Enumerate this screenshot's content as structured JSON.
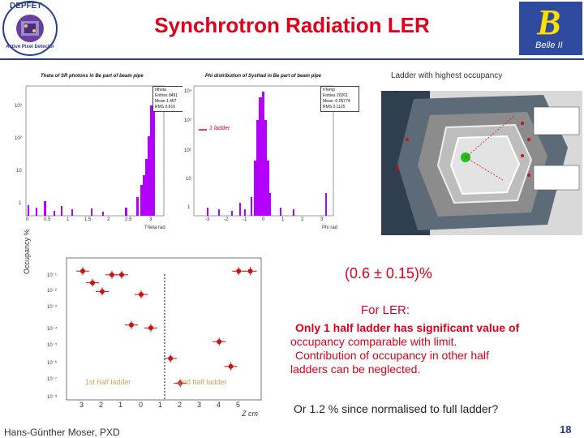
{
  "slide": {
    "title": "Synchrotron Radiation LER",
    "footer": "Hans-Günther Moser, PXD",
    "page_number": "18"
  },
  "logos": {
    "left": {
      "text_top": "DEPFET",
      "text_bottom": "Active Pixel Detector"
    },
    "right": {
      "letter": "B",
      "text": "Belle II",
      "background": "#2f4ba0"
    }
  },
  "hist_theta": {
    "title": "Theta of SR photons in Be part of beam pipe",
    "stats": {
      "name": "htheta",
      "entries": "Entries  8491",
      "mean": "Mean  1.457",
      "rms": "RMS  0.816"
    },
    "xlabel": "Theta rad",
    "xticks": [
      "0",
      "0.5",
      "1",
      "1.5",
      "2",
      "2.5",
      "3"
    ],
    "yticks": [
      "10³",
      "10²",
      "10",
      "1"
    ]
  },
  "hist_phi": {
    "title": "Phi distribution of SysHad in Be part of beam pipe",
    "stats": {
      "name": "hTemp",
      "entries": "Entries  20261",
      "mean": "Mean  -0.05774",
      "rms": "RMS  0.1125"
    },
    "legend": "1 ladder",
    "xlabel": "Phi rad",
    "xticks": [
      "-3",
      "-2",
      "-1",
      "0",
      "1",
      "2",
      "3"
    ],
    "yticks": [
      "10⁴",
      "10³",
      "10²",
      "10",
      "1"
    ]
  },
  "render": {
    "label": "Ladder with highest occupancy"
  },
  "occupancy_plot": {
    "ylabel": "Occupancy %",
    "xlabel": "Z cm",
    "yticks": [
      "10⁻¹",
      "10⁻²",
      "10⁻³",
      "10⁻⁴",
      "10⁻⁵",
      "10⁻⁶",
      "10⁻⁷",
      "10⁻⁸"
    ],
    "xticks": [
      "3",
      "2",
      "1",
      "0",
      "1",
      "2",
      "3",
      "4",
      "5"
    ],
    "label_left": "1st half ladder",
    "label_right": "2nd half ladder"
  },
  "chart_data": [
    {
      "type": "scatter",
      "xlabel": "Z cm",
      "ylabel": "Occupancy %",
      "ylog": true,
      "ylim": [
        1e-08,
        1
      ],
      "points_first_half": [
        {
          "x": 3.0,
          "y": 0.5
        },
        {
          "x": 2.5,
          "y": 0.1
        },
        {
          "x": 2.0,
          "y": 0.03
        },
        {
          "x": 1.5,
          "y": 0.3
        },
        {
          "x": 1.0,
          "y": 0.3
        },
        {
          "x": 0.5,
          "y": 0.0003
        },
        {
          "x": 0.0,
          "y": 0.02
        },
        {
          "x": -0.5,
          "y": 0.0002
        }
      ],
      "points_second_half": [
        {
          "x": 1.3,
          "y": 3e-06
        },
        {
          "x": 1.8,
          "y": 1e-07
        },
        {
          "x": 3.8,
          "y": 3e-05
        },
        {
          "x": 4.4,
          "y": 1e-06
        },
        {
          "x": 4.8,
          "y": 0.5
        },
        {
          "x": 5.4,
          "y": 0.5
        }
      ]
    }
  ],
  "text": {
    "occupancy_value": "(0.6 ± 0.15)%",
    "ler_head": "For LER:",
    "ler_line1": "Only 1 half ladder has significant  value of",
    "ler_line2": "occupancy comparable with limit.",
    "ler_line3": "Contribution of occupancy in other half",
    "ler_line4": "ladders can be neglected.",
    "note": "Or 1.2 % since normalised to full ladder?"
  },
  "colors": {
    "title": "#e0001a",
    "accent": "#2b3b8f",
    "hist": "#b400ff",
    "marker": "#cc1111"
  }
}
